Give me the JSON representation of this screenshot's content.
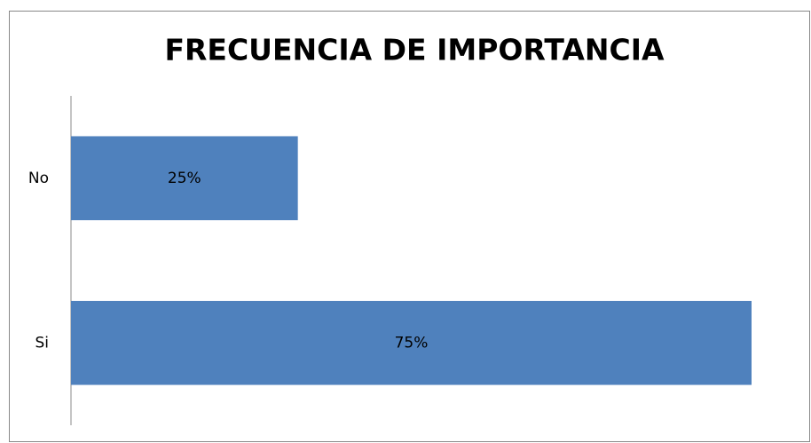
{
  "chart_data": {
    "type": "bar",
    "orientation": "horizontal",
    "title": "FRECUENCIA DE IMPORTANCIA",
    "categories": [
      "No",
      "Si"
    ],
    "values": [
      25,
      75
    ],
    "value_labels": [
      "25%",
      "75%"
    ],
    "color": "#4f81bd"
  }
}
